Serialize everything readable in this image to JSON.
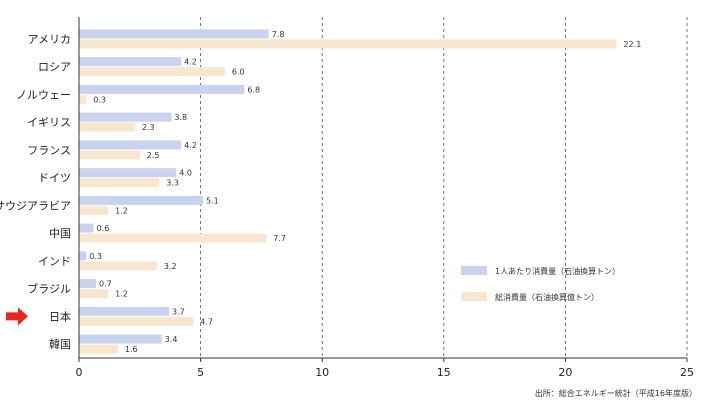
{
  "chart_data": {
    "type": "bar",
    "orientation": "horizontal",
    "categories": [
      "アメリカ",
      "ロシア",
      "ノルウェー",
      "イギリス",
      "フランス",
      "ドイツ",
      "サウジアラビア",
      "中国",
      "インド",
      "ブラジル",
      "日本",
      "韓国"
    ],
    "series": [
      {
        "name": "1人あたり消費量（石油換算トン）",
        "values": [
          7.8,
          4.2,
          6.8,
          3.8,
          4.2,
          4.0,
          5.1,
          0.6,
          0.3,
          0.7,
          3.7,
          3.4
        ]
      },
      {
        "name": "総消費量（石油換算億トン）",
        "values": [
          22.1,
          6.0,
          0.3,
          2.3,
          2.5,
          3.3,
          1.2,
          7.7,
          3.2,
          1.2,
          4.7,
          1.6
        ]
      }
    ],
    "series_colors": [
      "#c9d3ef",
      "#f9e6cf"
    ],
    "xlim": [
      0,
      25
    ],
    "xticks": [
      0,
      5,
      10,
      15,
      20,
      25
    ],
    "grid": "vertical-dashed",
    "legend_position": "right",
    "highlight_category": "日本",
    "highlight_color": "#e8281e",
    "source": "出所：総合エネルギー統計（平成16年度版）"
  }
}
